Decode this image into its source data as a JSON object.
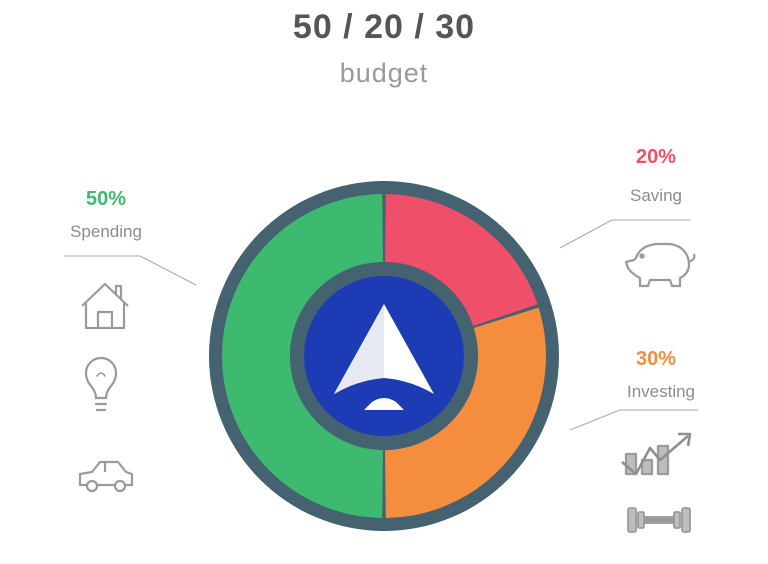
{
  "header": {
    "title": "50 / 20 / 30",
    "subtitle": "budget"
  },
  "colors": {
    "spending": "#3dba6f",
    "saving": "#ef4f68",
    "investing": "#f58d3f",
    "ring": "#44626f",
    "hub": "#1d3bb5",
    "label_text": "#8c8c8c",
    "icon_stroke": "#9a9a9a"
  },
  "chart_data": {
    "type": "pie",
    "title": "50 / 20 / 30",
    "subtitle": "budget",
    "categories": [
      "Spending",
      "Saving",
      "Investing"
    ],
    "values": [
      50,
      20,
      30
    ],
    "labels": [
      "50%",
      "20%",
      "30%"
    ],
    "colors": [
      "#3dba6f",
      "#ef4f68",
      "#f58d3f"
    ],
    "donut": true,
    "legend": "none"
  },
  "segments": [
    {
      "key": "spending",
      "percent_label": "50%",
      "name": "Spending",
      "icons": [
        "house-icon",
        "lightbulb-icon",
        "car-icon"
      ]
    },
    {
      "key": "saving",
      "percent_label": "20%",
      "name": "Saving",
      "icons": [
        "piggy-bank-icon"
      ]
    },
    {
      "key": "investing",
      "percent_label": "30%",
      "name": "Investing",
      "icons": [
        "growth-chart-icon",
        "dumbbell-icon"
      ]
    }
  ],
  "center": {
    "icon": "logo-arrow-icon"
  }
}
